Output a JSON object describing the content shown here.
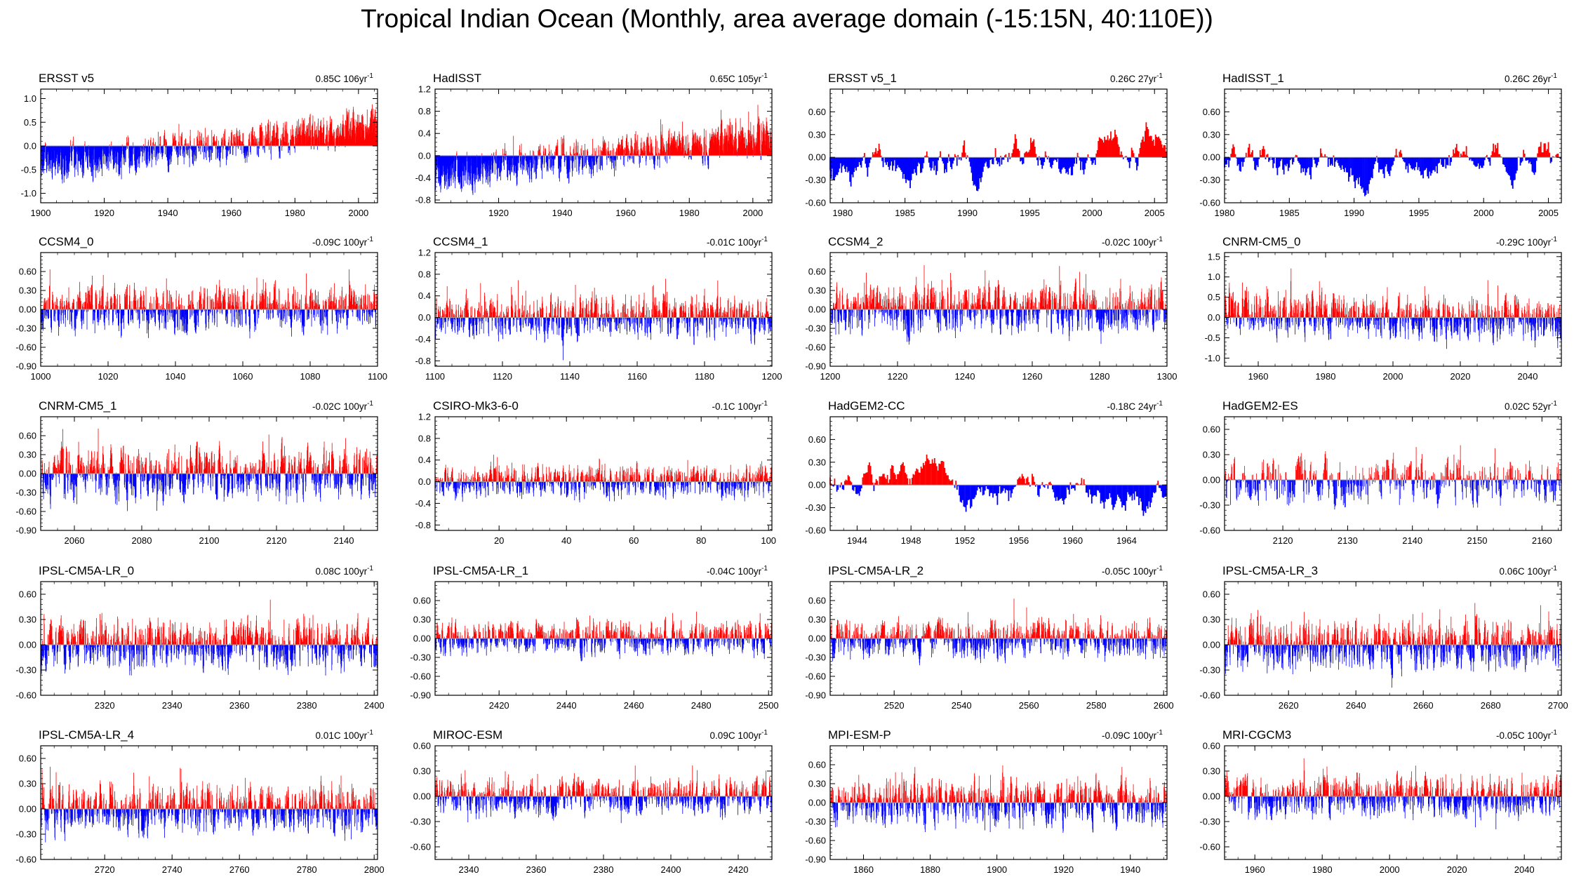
{
  "figure_title": "Tropical Indian Ocean (Monthly, area average domain (-15:15N, 40:110E))",
  "colors": {
    "positive": "#ff0000",
    "negative": "#0000ff",
    "axis": "#000000",
    "zero_line": "#9a9a9a"
  },
  "chart_data": [
    {
      "type": "bar",
      "title": "ERSST v5",
      "trend": "0.85C 106yr",
      "trend_unit_exp": "-1",
      "xlim": [
        1900,
        2006
      ],
      "xticks": [
        1900,
        1920,
        1940,
        1960,
        1980,
        2000
      ],
      "ylim": [
        -1.2,
        1.2
      ],
      "yticks": [
        "1.0",
        "0.5",
        "0.0",
        "-0.5",
        "-1.0"
      ],
      "yvals": [
        1.0,
        0.5,
        0.0,
        -0.5,
        -1.0
      ],
      "amp": 0.28,
      "trend_start": -0.45,
      "trend_end": 0.4,
      "seed": 11
    },
    {
      "type": "bar",
      "title": "HadISST",
      "trend": "0.65C 105yr",
      "trend_unit_exp": "-1",
      "xlim": [
        1900,
        2006
      ],
      "xticks": [
        1920,
        1940,
        1960,
        1980,
        2000
      ],
      "ylim": [
        -0.85,
        1.2
      ],
      "yticks": [
        "1.2",
        "0.8",
        "0.4",
        "0.0",
        "-0.4",
        "-0.8"
      ],
      "yvals": [
        1.2,
        0.8,
        0.4,
        0.0,
        -0.4,
        -0.8
      ],
      "amp": 0.25,
      "trend_start": -0.35,
      "trend_end": 0.35,
      "seed": 12
    },
    {
      "type": "bar",
      "title": "ERSST v5_1",
      "trend": "0.26C 27yr",
      "trend_unit_exp": "-1",
      "xlim": [
        1979,
        2006
      ],
      "xticks": [
        1980,
        1985,
        1990,
        1995,
        2000,
        2005
      ],
      "ylim": [
        -0.6,
        0.9
      ],
      "yticks": [
        "0.60",
        "0.30",
        "0.00",
        "-0.30",
        "-0.60"
      ],
      "yvals": [
        0.6,
        0.3,
        0.0,
        -0.3,
        -0.6
      ],
      "amp": 0.32,
      "trend_start": -0.15,
      "trend_end": 0.15,
      "seed": 13,
      "smooth": true
    },
    {
      "type": "bar",
      "title": "HadISST_1",
      "trend": "0.26C 26yr",
      "trend_unit_exp": "-1",
      "xlim": [
        1980,
        2006
      ],
      "xticks": [
        1980,
        1985,
        1990,
        1995,
        2000,
        2005
      ],
      "ylim": [
        -0.6,
        0.9
      ],
      "yticks": [
        "0.60",
        "0.30",
        "0.00",
        "-0.30",
        "-0.60"
      ],
      "yvals": [
        0.6,
        0.3,
        0.0,
        -0.3,
        -0.6
      ],
      "amp": 0.3,
      "trend_start": -0.15,
      "trend_end": 0.12,
      "seed": 14,
      "smooth": true
    },
    {
      "type": "bar",
      "title": "CCSM4_0",
      "trend": "-0.09C 100yr",
      "trend_unit_exp": "-1",
      "xlim": [
        1000,
        1100
      ],
      "xticks": [
        1000,
        1020,
        1040,
        1060,
        1080,
        1100
      ],
      "ylim": [
        -0.9,
        0.9
      ],
      "yticks": [
        "0.60",
        "0.30",
        "0.00",
        "-0.30",
        "-0.60",
        "-0.90"
      ],
      "yvals": [
        0.6,
        0.3,
        0.0,
        -0.3,
        -0.6,
        -0.9
      ],
      "amp": 0.28,
      "trend_start": 0,
      "trend_end": 0,
      "seed": 21
    },
    {
      "type": "bar",
      "title": "CCSM4_1",
      "trend": "-0.01C 100yr",
      "trend_unit_exp": "-1",
      "xlim": [
        1100,
        1200
      ],
      "xticks": [
        1100,
        1120,
        1140,
        1160,
        1180,
        1200
      ],
      "ylim": [
        -0.9,
        1.2
      ],
      "yticks": [
        "1.2",
        "0.8",
        "0.4",
        "0.0",
        "-0.4",
        "-0.8"
      ],
      "yvals": [
        1.2,
        0.8,
        0.4,
        0.0,
        -0.4,
        -0.8
      ],
      "amp": 0.3,
      "trend_start": 0,
      "trend_end": 0,
      "seed": 22
    },
    {
      "type": "bar",
      "title": "CCSM4_2",
      "trend": "-0.02C 100yr",
      "trend_unit_exp": "-1",
      "xlim": [
        1200,
        1300
      ],
      "xticks": [
        1200,
        1220,
        1240,
        1260,
        1280,
        1300
      ],
      "ylim": [
        -0.9,
        0.9
      ],
      "yticks": [
        "0.60",
        "0.30",
        "0.00",
        "-0.30",
        "-0.60",
        "-0.90"
      ],
      "yvals": [
        0.6,
        0.3,
        0.0,
        -0.3,
        -0.6,
        -0.9
      ],
      "amp": 0.28,
      "trend_start": 0,
      "trend_end": 0,
      "seed": 23
    },
    {
      "type": "bar",
      "title": "CNRM-CM5_0",
      "trend": "-0.29C 100yr",
      "trend_unit_exp": "-1",
      "xlim": [
        1950,
        2050
      ],
      "xticks": [
        1960,
        1980,
        2000,
        2020,
        2040
      ],
      "ylim": [
        -1.2,
        1.6
      ],
      "yticks": [
        "1.5",
        "1.0",
        "0.5",
        "0.0",
        "-0.5",
        "-1.0"
      ],
      "yvals": [
        1.5,
        1.0,
        0.5,
        0.0,
        -0.5,
        -1.0
      ],
      "amp": 0.4,
      "trend_start": 0.15,
      "trend_end": -0.1,
      "seed": 24
    },
    {
      "type": "bar",
      "title": "CNRM-CM5_1",
      "trend": "-0.02C 100yr",
      "trend_unit_exp": "-1",
      "xlim": [
        2050,
        2150
      ],
      "xticks": [
        2060,
        2080,
        2100,
        2120,
        2140
      ],
      "ylim": [
        -0.9,
        0.9
      ],
      "yticks": [
        "0.60",
        "0.30",
        "0.00",
        "-0.30",
        "-0.60",
        "-0.90"
      ],
      "yvals": [
        0.6,
        0.3,
        0.0,
        -0.3,
        -0.6,
        -0.9
      ],
      "amp": 0.3,
      "trend_start": 0,
      "trend_end": 0,
      "seed": 31
    },
    {
      "type": "bar",
      "title": "CSIRO-Mk3-6-0",
      "trend": "-0.1C 100yr",
      "trend_unit_exp": "-1",
      "xlim": [
        1,
        101
      ],
      "xticks": [
        20,
        40,
        60,
        80,
        100
      ],
      "ylim": [
        -0.9,
        1.2
      ],
      "yticks": [
        "1.2",
        "0.8",
        "0.4",
        "0.0",
        "-0.4",
        "-0.8"
      ],
      "yvals": [
        1.2,
        0.8,
        0.4,
        0.0,
        -0.4,
        -0.8
      ],
      "amp": 0.22,
      "trend_start": 0,
      "trend_end": 0,
      "seed": 32
    },
    {
      "type": "bar",
      "title": "HadGEM2-CC",
      "trend": "-0.18C 24yr",
      "trend_unit_exp": "-1",
      "xlim": [
        1942,
        1967
      ],
      "xticks": [
        1944,
        1948,
        1952,
        1956,
        1960,
        1964
      ],
      "ylim": [
        -0.6,
        0.9
      ],
      "yticks": [
        "0.60",
        "0.30",
        "0.00",
        "-0.30",
        "-0.60"
      ],
      "yvals": [
        0.6,
        0.3,
        0.0,
        -0.3,
        -0.6
      ],
      "amp": 0.28,
      "trend_start": 0.08,
      "trend_end": -0.08,
      "seed": 33,
      "smooth": true
    },
    {
      "type": "bar",
      "title": "HadGEM2-ES",
      "trend": "0.02C 52yr",
      "trend_unit_exp": "-1",
      "xlim": [
        2111,
        2163
      ],
      "xticks": [
        2120,
        2130,
        2140,
        2150,
        2160
      ],
      "ylim": [
        -0.6,
        0.75
      ],
      "yticks": [
        "0.60",
        "0.30",
        "0.00",
        "-0.30",
        "-0.60"
      ],
      "yvals": [
        0.6,
        0.3,
        0.0,
        -0.3,
        -0.6
      ],
      "amp": 0.2,
      "trend_start": 0,
      "trend_end": 0,
      "seed": 34
    },
    {
      "type": "bar",
      "title": "IPSL-CM5A-LR_0",
      "trend": "0.08C 100yr",
      "trend_unit_exp": "-1",
      "xlim": [
        2301,
        2401
      ],
      "xticks": [
        2320,
        2340,
        2360,
        2380,
        2400
      ],
      "ylim": [
        -0.6,
        0.75
      ],
      "yticks": [
        "0.60",
        "0.30",
        "0.00",
        "-0.30",
        "-0.60"
      ],
      "yvals": [
        0.6,
        0.3,
        0.0,
        -0.3,
        -0.6
      ],
      "amp": 0.22,
      "trend_start": 0,
      "trend_end": 0,
      "seed": 41
    },
    {
      "type": "bar",
      "title": "IPSL-CM5A-LR_1",
      "trend": "-0.04C 100yr",
      "trend_unit_exp": "-1",
      "xlim": [
        2401,
        2501
      ],
      "xticks": [
        2420,
        2440,
        2460,
        2480,
        2500
      ],
      "ylim": [
        -0.9,
        0.9
      ],
      "yticks": [
        "0.60",
        "0.30",
        "0.00",
        "-0.30",
        "-0.60",
        "-0.90"
      ],
      "yvals": [
        0.6,
        0.3,
        0.0,
        -0.3,
        -0.6,
        -0.9
      ],
      "amp": 0.2,
      "trend_start": 0,
      "trend_end": 0,
      "seed": 42
    },
    {
      "type": "bar",
      "title": "IPSL-CM5A-LR_2",
      "trend": "-0.05C 100yr",
      "trend_unit_exp": "-1",
      "xlim": [
        2501,
        2601
      ],
      "xticks": [
        2520,
        2540,
        2560,
        2580,
        2600
      ],
      "ylim": [
        -0.9,
        0.9
      ],
      "yticks": [
        "0.60",
        "0.30",
        "0.00",
        "-0.30",
        "-0.60",
        "-0.90"
      ],
      "yvals": [
        0.6,
        0.3,
        0.0,
        -0.3,
        -0.6,
        -0.9
      ],
      "amp": 0.22,
      "trend_start": 0,
      "trend_end": 0,
      "seed": 43
    },
    {
      "type": "bar",
      "title": "IPSL-CM5A-LR_3",
      "trend": "0.06C 100yr",
      "trend_unit_exp": "-1",
      "xlim": [
        2601,
        2701
      ],
      "xticks": [
        2620,
        2640,
        2660,
        2680,
        2700
      ],
      "ylim": [
        -0.6,
        0.75
      ],
      "yticks": [
        "0.60",
        "0.30",
        "0.00",
        "-0.30",
        "-0.60"
      ],
      "yvals": [
        0.6,
        0.3,
        0.0,
        -0.3,
        -0.6
      ],
      "amp": 0.22,
      "trend_start": 0,
      "trend_end": 0,
      "seed": 44
    },
    {
      "type": "bar",
      "title": "IPSL-CM5A-LR_4",
      "trend": "0.01C 100yr",
      "trend_unit_exp": "-1",
      "xlim": [
        2701,
        2801
      ],
      "xticks": [
        2720,
        2740,
        2760,
        2780,
        2800
      ],
      "ylim": [
        -0.6,
        0.75
      ],
      "yticks": [
        "0.60",
        "0.30",
        "0.00",
        "-0.30",
        "-0.60"
      ],
      "yvals": [
        0.6,
        0.3,
        0.0,
        -0.3,
        -0.6
      ],
      "amp": 0.22,
      "trend_start": 0,
      "trend_end": 0,
      "seed": 51
    },
    {
      "type": "bar",
      "title": "MIROC-ESM",
      "trend": "0.09C 100yr",
      "trend_unit_exp": "-1",
      "xlim": [
        2330,
        2430
      ],
      "xticks": [
        2340,
        2360,
        2380,
        2400,
        2420
      ],
      "ylim": [
        -0.75,
        0.6
      ],
      "yticks": [
        "0.60",
        "0.30",
        "0.00",
        "-0.30",
        "-0.60"
      ],
      "yvals": [
        0.6,
        0.3,
        0.0,
        -0.3,
        -0.6
      ],
      "amp": 0.16,
      "trend_start": 0,
      "trend_end": 0,
      "seed": 52
    },
    {
      "type": "bar",
      "title": "MPI-ESM-P",
      "trend": "-0.09C 100yr",
      "trend_unit_exp": "-1",
      "xlim": [
        1850,
        1951
      ],
      "xticks": [
        1860,
        1880,
        1900,
        1920,
        1940
      ],
      "ylim": [
        -0.9,
        0.9
      ],
      "yticks": [
        "0.60",
        "0.30",
        "0.00",
        "-0.30",
        "-0.60",
        "-0.90"
      ],
      "yvals": [
        0.6,
        0.3,
        0.0,
        -0.3,
        -0.6,
        -0.9
      ],
      "amp": 0.26,
      "trend_start": 0,
      "trend_end": 0,
      "seed": 53
    },
    {
      "type": "bar",
      "title": "MRI-CGCM3",
      "trend": "-0.05C 100yr",
      "trend_unit_exp": "-1",
      "xlim": [
        1951,
        2051
      ],
      "xticks": [
        1960,
        1980,
        2000,
        2020,
        2040
      ],
      "ylim": [
        -0.75,
        0.6
      ],
      "yticks": [
        "0.60",
        "0.30",
        "0.00",
        "-0.30",
        "-0.60"
      ],
      "yvals": [
        0.6,
        0.3,
        0.0,
        -0.3,
        -0.6
      ],
      "amp": 0.18,
      "trend_start": 0,
      "trend_end": 0,
      "seed": 54
    }
  ]
}
